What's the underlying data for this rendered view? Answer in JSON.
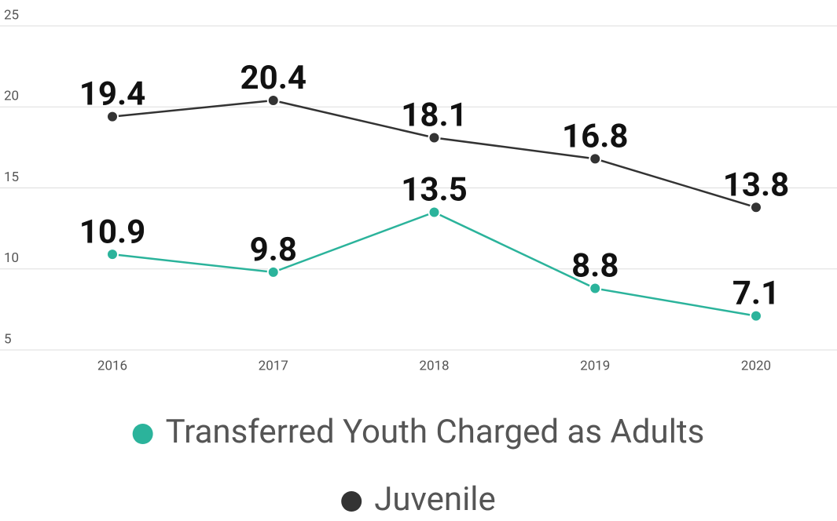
{
  "chart_data": {
    "type": "line",
    "categories": [
      "2016",
      "2017",
      "2018",
      "2019",
      "2020"
    ],
    "series": [
      {
        "name": "Transferred Youth Charged as Adults",
        "color": "#2bb39b",
        "values": [
          10.9,
          9.8,
          13.5,
          8.8,
          7.1
        ]
      },
      {
        "name": "Juvenile",
        "color": "#333333",
        "values": [
          19.4,
          20.4,
          18.1,
          16.8,
          13.8
        ]
      }
    ],
    "ylim": [
      5,
      25
    ],
    "yticks": [
      5,
      10,
      15,
      20,
      25
    ],
    "grid": true,
    "legend": "bottom"
  }
}
